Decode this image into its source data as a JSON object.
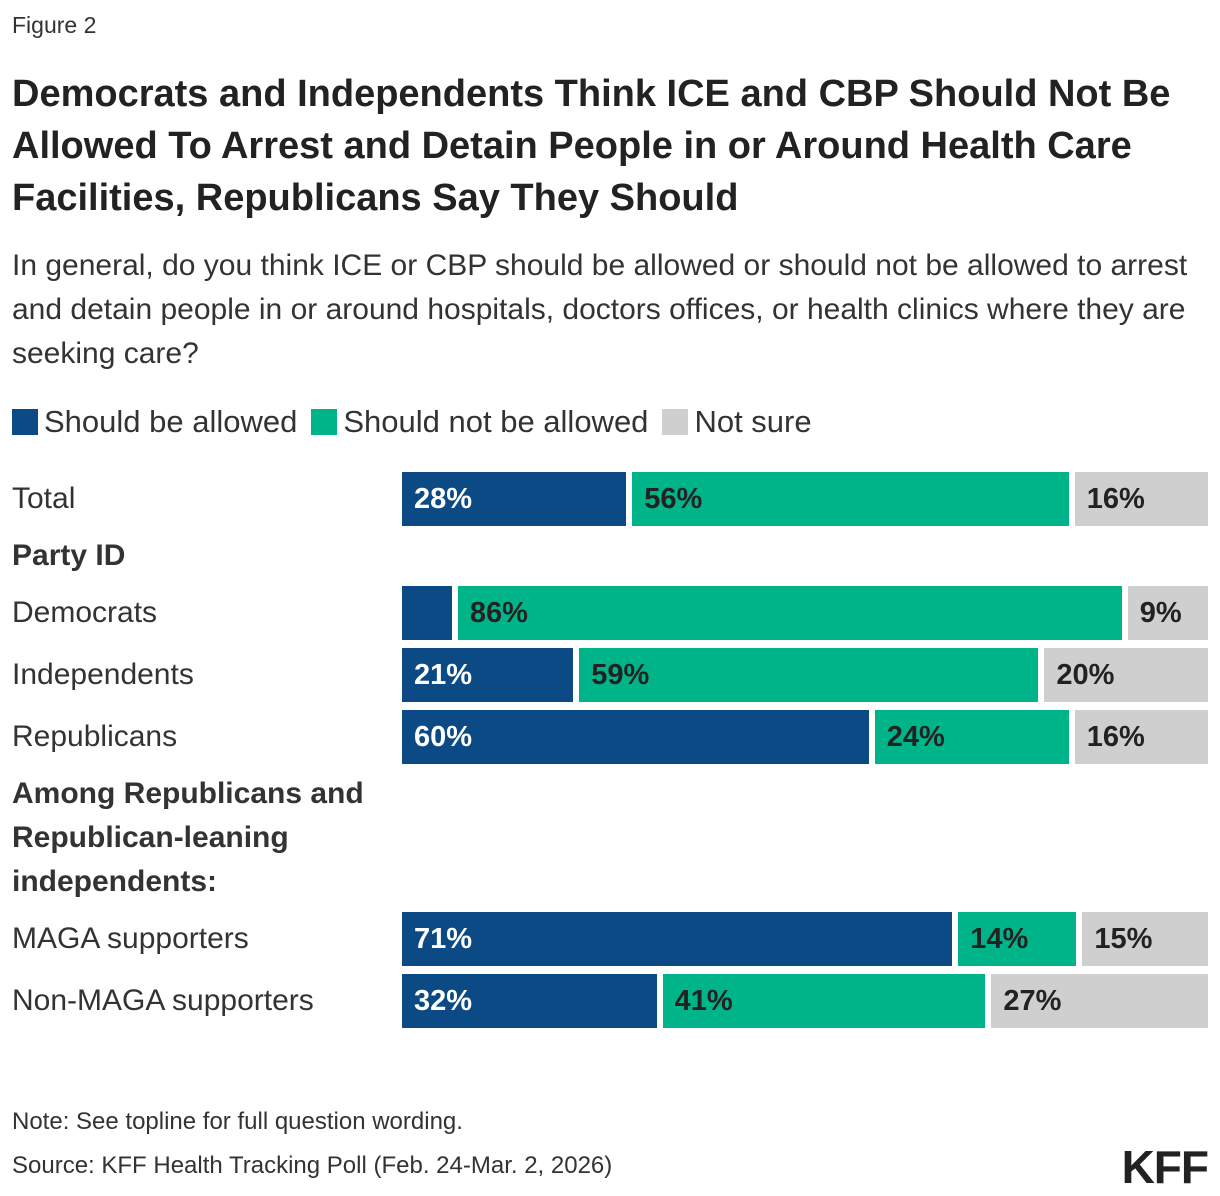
{
  "chart_data": {
    "type": "stacked-bar",
    "figure_label": "Figure 2",
    "title": "Democrats and Independents Think ICE and CBP Should Not Be Allowed To Arrest and Detain People in or Around Health Care Facilities, Republicans Say They Should",
    "subtitle": "In general, do you think ICE or CBP should be allowed or should not be allowed to arrest and detain people in or around hospitals, doctors offices, or health clinics where they are seeking care?",
    "categories": [
      "Total",
      "Party ID",
      "Democrats",
      "Independents",
      "Republicans",
      "Among Republicans and Republican-leaning independents:",
      "MAGA supporters",
      "Non-MAGA supporters"
    ],
    "series": [
      {
        "name": "Should be allowed",
        "color": "#0b4a85",
        "values": [
          28,
          null,
          5,
          21,
          60,
          null,
          71,
          32
        ],
        "value_labels": [
          "28%",
          null,
          null,
          "21%",
          "60%",
          null,
          "71%",
          "32%"
        ]
      },
      {
        "name": "Should not be allowed",
        "color": "#00b48a",
        "values": [
          56,
          null,
          86,
          59,
          24,
          null,
          14,
          41
        ],
        "value_labels": [
          "56%",
          null,
          "86%",
          "59%",
          "24%",
          null,
          "14%",
          "41%"
        ]
      },
      {
        "name": "Not sure",
        "color": "#cfcfcf",
        "values": [
          16,
          null,
          9,
          20,
          16,
          null,
          15,
          27
        ],
        "value_labels": [
          "16%",
          null,
          "9%",
          "20%",
          "16%",
          null,
          "15%",
          "27%"
        ]
      }
    ],
    "note": "Note: See topline for full question wording.",
    "source": "Source: KFF Health Tracking Poll (Feb. 24-Mar. 2, 2026)",
    "logo": "KFF"
  }
}
